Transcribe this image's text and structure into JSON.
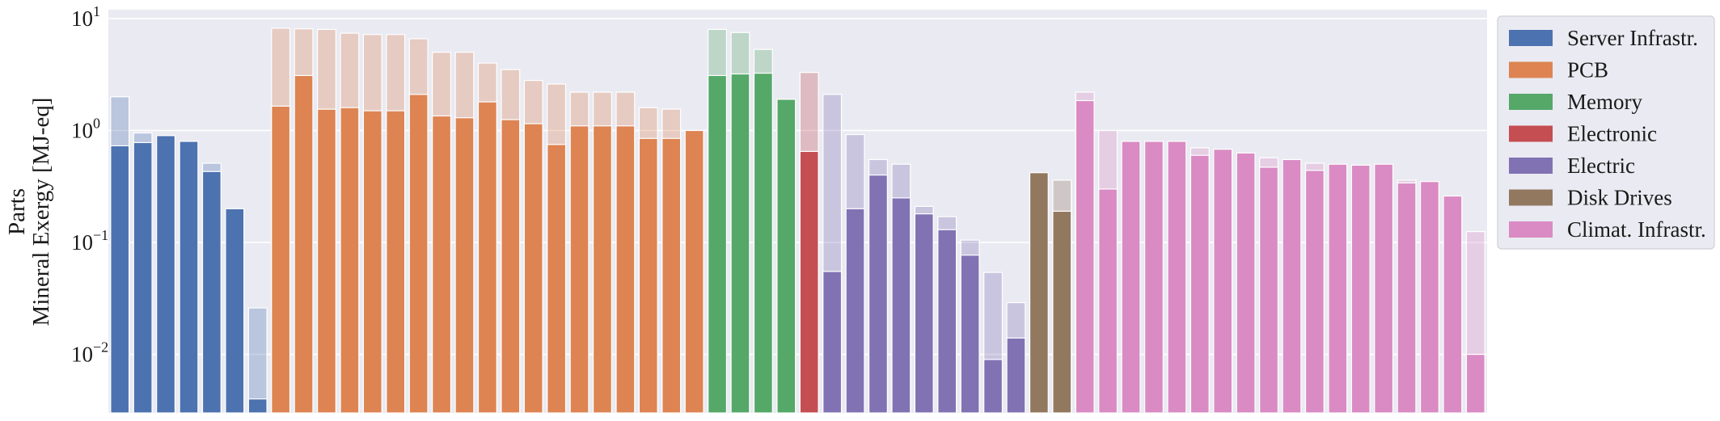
{
  "chart_data": {
    "type": "bar",
    "ylabel_line1": "Parts",
    "ylabel_line2": "Mineral Exergy [MJ-eq]",
    "xlabel": "",
    "yscale": "log",
    "ylim": [
      0.003,
      12
    ],
    "yticks": [
      {
        "base": "10",
        "exp": "−2",
        "value": 0.01
      },
      {
        "base": "10",
        "exp": "−1",
        "value": 0.1
      },
      {
        "base": "10",
        "exp": "0",
        "value": 1
      },
      {
        "base": "10",
        "exp": "1",
        "value": 10
      }
    ],
    "grid": true,
    "legend_position": "right, outside",
    "background": "#eaeaf2",
    "series": [
      {
        "name": "Server Infrastr.",
        "color": "#4c72b0",
        "values": [
          0.73,
          0.78,
          0.9,
          0.8,
          0.43,
          0.2,
          0.004
        ],
        "upper": [
          2.0,
          0.95,
          0.9,
          0.8,
          0.51,
          0.2,
          0.026
        ]
      },
      {
        "name": "PCB",
        "color": "#dd8452",
        "values": [
          1.65,
          3.1,
          1.55,
          1.6,
          1.5,
          1.5,
          2.1,
          1.35,
          1.3,
          1.8,
          1.25,
          1.15,
          0.75,
          1.1,
          1.1,
          1.1,
          0.85,
          0.85,
          1.0
        ],
        "upper": [
          8.2,
          8.1,
          8.0,
          7.4,
          7.2,
          7.2,
          6.6,
          5.0,
          5.0,
          4.0,
          3.5,
          2.8,
          2.6,
          2.2,
          2.2,
          2.2,
          1.6,
          1.55,
          1.0
        ]
      },
      {
        "name": "Memory",
        "color": "#55a868",
        "values": [
          3.1,
          3.2,
          3.25,
          1.9
        ],
        "upper": [
          8.0,
          7.5,
          5.3,
          1.9
        ]
      },
      {
        "name": "Electronic",
        "color": "#c44e52",
        "values": [
          0.65
        ],
        "upper": [
          3.3
        ]
      },
      {
        "name": "Electric",
        "color": "#8172b3",
        "values": [
          0.055,
          0.2,
          0.4,
          0.25,
          0.18,
          0.13,
          0.077,
          0.009,
          0.014
        ],
        "upper": [
          2.1,
          0.92,
          0.55,
          0.5,
          0.21,
          0.17,
          0.105,
          0.054,
          0.029
        ]
      },
      {
        "name": "Disk Drives",
        "color": "#937860",
        "values": [
          0.42,
          0.19
        ],
        "upper": [
          0.42,
          0.36
        ]
      },
      {
        "name": "Climat. Infrastr.",
        "color": "#da8bc3",
        "values": [
          1.85,
          0.3,
          0.8,
          0.8,
          0.8,
          0.6,
          0.68,
          0.63,
          0.47,
          0.55,
          0.44,
          0.5,
          0.49,
          0.5,
          0.34,
          0.35,
          0.26,
          0.01
        ],
        "upper": [
          2.2,
          1.0,
          0.8,
          0.8,
          0.8,
          0.7,
          0.68,
          0.63,
          0.57,
          0.55,
          0.51,
          0.5,
          0.49,
          0.5,
          0.36,
          0.35,
          0.26,
          0.125
        ]
      }
    ]
  }
}
